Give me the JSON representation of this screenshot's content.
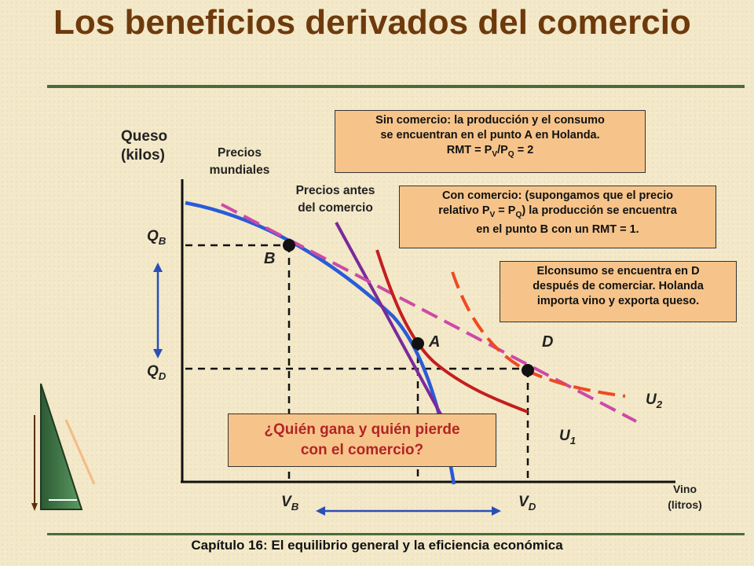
{
  "title": "Los beneficios derivados del comercio",
  "footer": "Capítulo 16: El equilibrio general y la eficiencia económica",
  "axes": {
    "y_label_line1": "Queso",
    "y_label_line2": "(kilos)",
    "x_label_line1": "Vino",
    "x_label_line2": "(litros)"
  },
  "labels": {
    "world_prices_line1": "Precios",
    "world_prices_line2": "mundiales",
    "pretrade_prices_line1": "Precios antes",
    "pretrade_prices_line2": "del comercio",
    "point_a": "A",
    "point_b": "B",
    "point_d": "D",
    "q": "Q",
    "v": "V",
    "sub_b": "B",
    "sub_d": "D",
    "u": "U",
    "sub_1": "1",
    "sub_2": "2"
  },
  "boxes": {
    "no_trade": {
      "line1": "Sin comercio: la producción y el consumo",
      "line2": "se encuentran en el punto A en Holanda.",
      "line3_prefix": "RMT = P",
      "line3_sub1": "V",
      "line3_slash": "/P",
      "line3_sub2": "Q",
      "line3_suffix": " = 2"
    },
    "with_trade": {
      "line1": "Con comercio: (supongamos que el precio",
      "line2_prefix": "relativo P",
      "line2_sub1": "V",
      "line2_mid": " = P",
      "line2_sub2": "Q",
      "line2_suffix": ") la producción se encuentra",
      "line3": "en el punto B con un RMT = 1."
    },
    "consumption": {
      "line1": "Elconsumo se encuentra en D",
      "line2": "después de comerciar. Holanda",
      "line3": "importa vino y exporta queso."
    },
    "question": {
      "line1": "¿Quién gana y quién pierde",
      "line2": "con el comercio?"
    }
  },
  "colors": {
    "title": "#6e3a0c",
    "ppf": "#2a5bd7",
    "pretrade_line": "#7a2a9a",
    "world_price_line": "#cc4aa8",
    "u1": "#c41e1e",
    "u2": "#ee4a22",
    "box_fill": "#f6c48a",
    "question_text": "#b12525"
  }
}
